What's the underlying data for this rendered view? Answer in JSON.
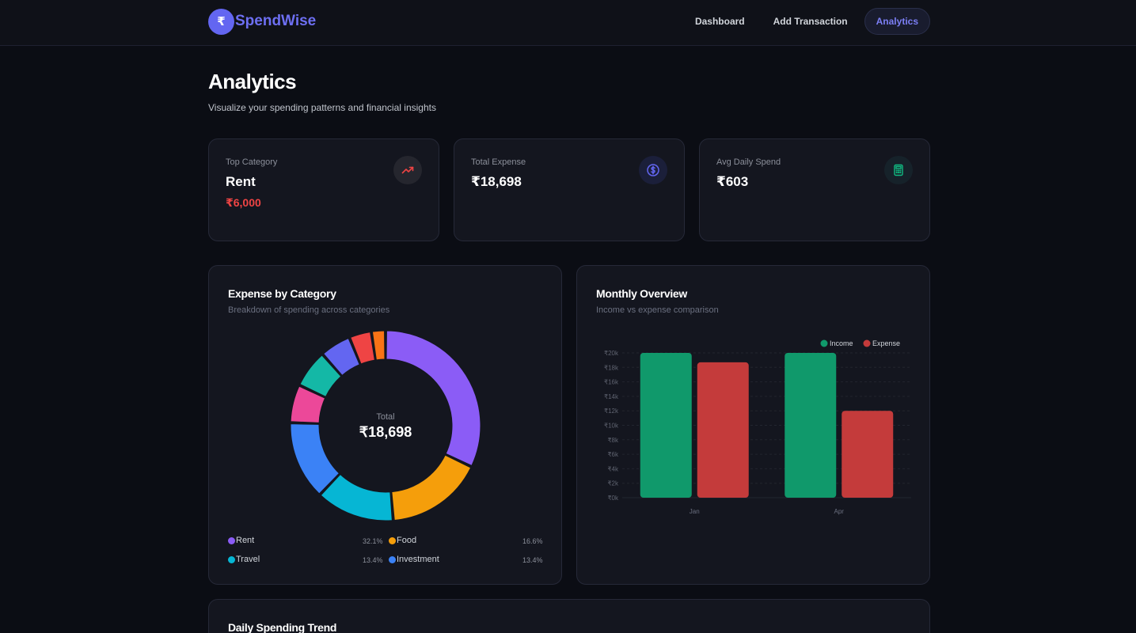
{
  "brand": {
    "logo_glyph": "₹",
    "name": "SpendWise"
  },
  "nav": [
    {
      "label": "Dashboard",
      "active": false
    },
    {
      "label": "Add Transaction",
      "active": false
    },
    {
      "label": "Analytics",
      "active": true
    }
  ],
  "page": {
    "title": "Analytics",
    "subtitle": "Visualize your spending patterns and financial insights"
  },
  "stats": [
    {
      "label": "Top Category",
      "value": "Rent",
      "sub": "₹6,000",
      "icon": "trending-up-icon",
      "icon_color": "#ef4444"
    },
    {
      "label": "Total Expense",
      "value": "₹18,698",
      "icon": "dollar-circle-icon",
      "icon_color": "#6366f1"
    },
    {
      "label": "Avg Daily Spend",
      "value": "₹603",
      "icon": "calculator-icon",
      "icon_color": "#10b981"
    }
  ],
  "category_panel": {
    "title": "Expense by Category",
    "subtitle": "Breakdown of spending across categories",
    "center_label": "Total",
    "center_value": "₹18,698"
  },
  "monthly_panel": {
    "title": "Monthly Overview",
    "subtitle": "Income vs expense comparison"
  },
  "trend_panel": {
    "title": "Daily Spending Trend"
  },
  "chart_data": [
    {
      "type": "pie",
      "donut": true,
      "slices": [
        {
          "label": "Rent",
          "percent": 32.1,
          "pct_label": "32.1%",
          "color": "#8b5cf6"
        },
        {
          "label": "Food",
          "percent": 16.6,
          "pct_label": "16.6%",
          "color": "#f59e0b"
        },
        {
          "label": "Travel",
          "percent": 13.4,
          "pct_label": "13.4%",
          "color": "#06b6d4"
        },
        {
          "label": "Investment",
          "percent": 13.4,
          "pct_label": "13.4%",
          "color": "#3b82f6"
        },
        {
          "label": "",
          "percent": 6.5,
          "color": "#ec4899"
        },
        {
          "label": "",
          "percent": 6.5,
          "color": "#14b8a6"
        },
        {
          "label": "",
          "percent": 5.3,
          "color": "#6366f1"
        },
        {
          "label": "",
          "percent": 3.8,
          "color": "#ef4444"
        },
        {
          "label": "",
          "percent": 2.4,
          "color": "#f97316"
        }
      ],
      "legend_visible": [
        "Rent",
        "Food",
        "Travel",
        "Investment"
      ]
    },
    {
      "type": "bar",
      "categories": [
        "Jan",
        "Apr"
      ],
      "series": [
        {
          "name": "Income",
          "values": [
            20000,
            20000
          ],
          "color": "#10996b"
        },
        {
          "name": "Expense",
          "values": [
            18698,
            12000
          ],
          "color": "#c43b3b"
        }
      ],
      "ylim": [
        0,
        20000
      ],
      "yticks": [
        "₹0k",
        "₹2k",
        "₹4k",
        "₹6k",
        "₹8k",
        "₹10k",
        "₹12k",
        "₹14k",
        "₹16k",
        "₹18k",
        "₹20k"
      ],
      "legend": "top-right",
      "grid": true
    }
  ]
}
